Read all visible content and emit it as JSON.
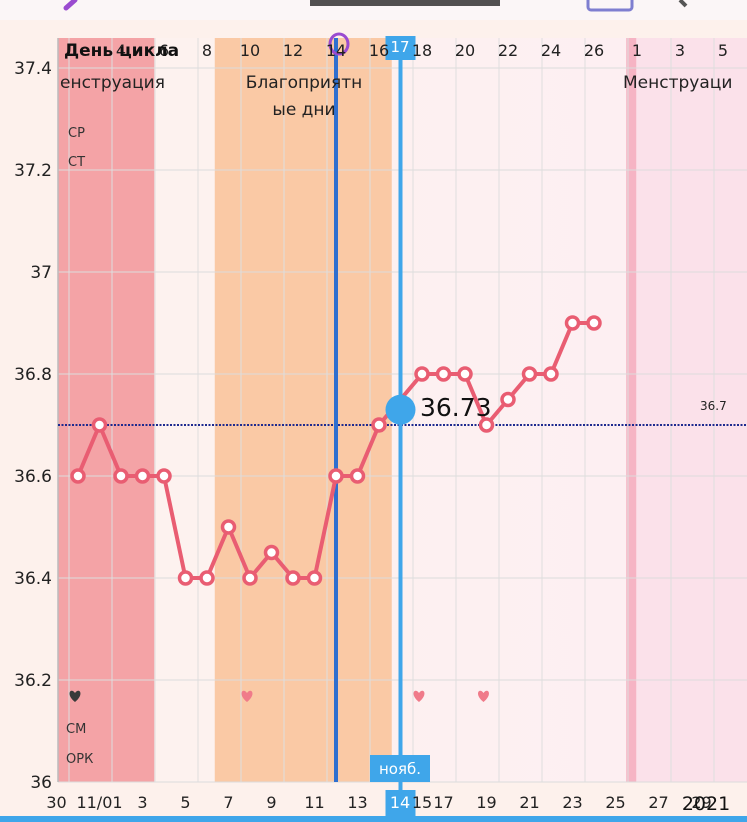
{
  "header": {
    "cycle_day_label": "День цикла",
    "year_label": "2021"
  },
  "bands": {
    "menstruation_left": "енструация",
    "fertile_line1": "Благоприятн",
    "fertile_line2": "ые дни",
    "menstruation_right": "Менструаци"
  },
  "annotations": {
    "top_left": [
      "СР",
      "СТ"
    ],
    "bottom_left": [
      "СМ",
      "ОРК"
    ]
  },
  "cursor": {
    "day": "17",
    "date": "14",
    "month": "нояб.",
    "value_label": "36.73"
  },
  "coverline": {
    "value": 36.7,
    "label": "36.7"
  },
  "colors": {
    "menstruation": "#f4a3a6",
    "fertile": "#fac9a5",
    "line": "#e95d72",
    "cursor": "#3fa6ea",
    "ovulation_line": "#2f6fcf",
    "coverline": "#1d2a8f",
    "heart_dark": "#3a3a3a",
    "heart": "#f07b8a",
    "ovulation_marker": "#9a4bd0"
  },
  "chart_data": {
    "type": "line",
    "ylim": [
      36,
      37.4
    ],
    "y_ticks": [
      "36",
      "36.2",
      "36.4",
      "36.6",
      "36.8",
      "37",
      "37.2",
      "37.4"
    ],
    "cycle_day_ticks": [
      "4",
      "6",
      "8",
      "10",
      "12",
      "14",
      "16",
      "17",
      "18",
      "20",
      "22",
      "24",
      "26",
      "1",
      "3",
      "5"
    ],
    "date_ticks": [
      "30",
      "11/01",
      "3",
      "5",
      "7",
      "9",
      "11",
      "13",
      "14",
      "15",
      "17",
      "19",
      "21",
      "23",
      "25",
      "27",
      "29"
    ],
    "series": [
      {
        "cycle_days": [
          2,
          3,
          4,
          5,
          6,
          7,
          8,
          9,
          10,
          11,
          12,
          13,
          14,
          15,
          16,
          18,
          19,
          20,
          21,
          22,
          23,
          24,
          25,
          26
        ],
        "values": [
          36.6,
          36.7,
          36.6,
          36.6,
          36.6,
          36.4,
          36.4,
          36.5,
          36.4,
          36.45,
          36.4,
          36.4,
          36.6,
          36.6,
          36.7,
          36.8,
          36.8,
          36.8,
          36.7,
          36.75,
          36.8,
          36.8,
          36.9,
          36.9
        ]
      }
    ],
    "cursor_point": {
      "cycle_day": 17,
      "value": 36.73
    },
    "hearts_cycle_days": [
      2,
      10,
      18,
      21
    ],
    "ovulation_cycle_day": 14,
    "fertile_window_cycle_days": [
      9,
      16
    ],
    "menstruation_cycle_days": [
      1,
      5
    ],
    "next_menstruation_from_cycle_day": 28
  }
}
